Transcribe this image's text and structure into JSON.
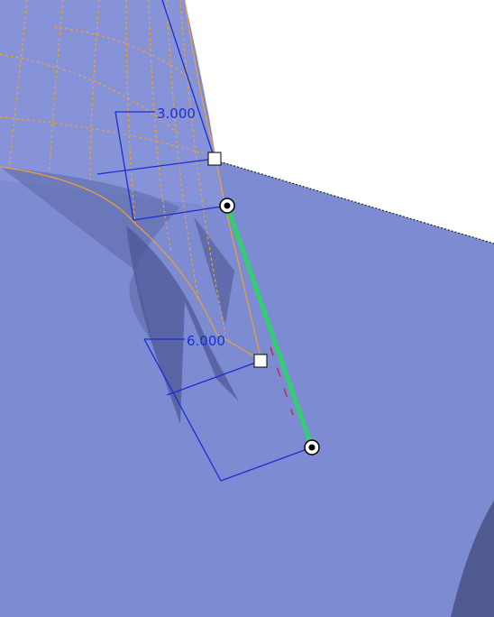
{
  "dimensions": [
    {
      "label": "3.000"
    },
    {
      "label": "6.000"
    }
  ]
}
